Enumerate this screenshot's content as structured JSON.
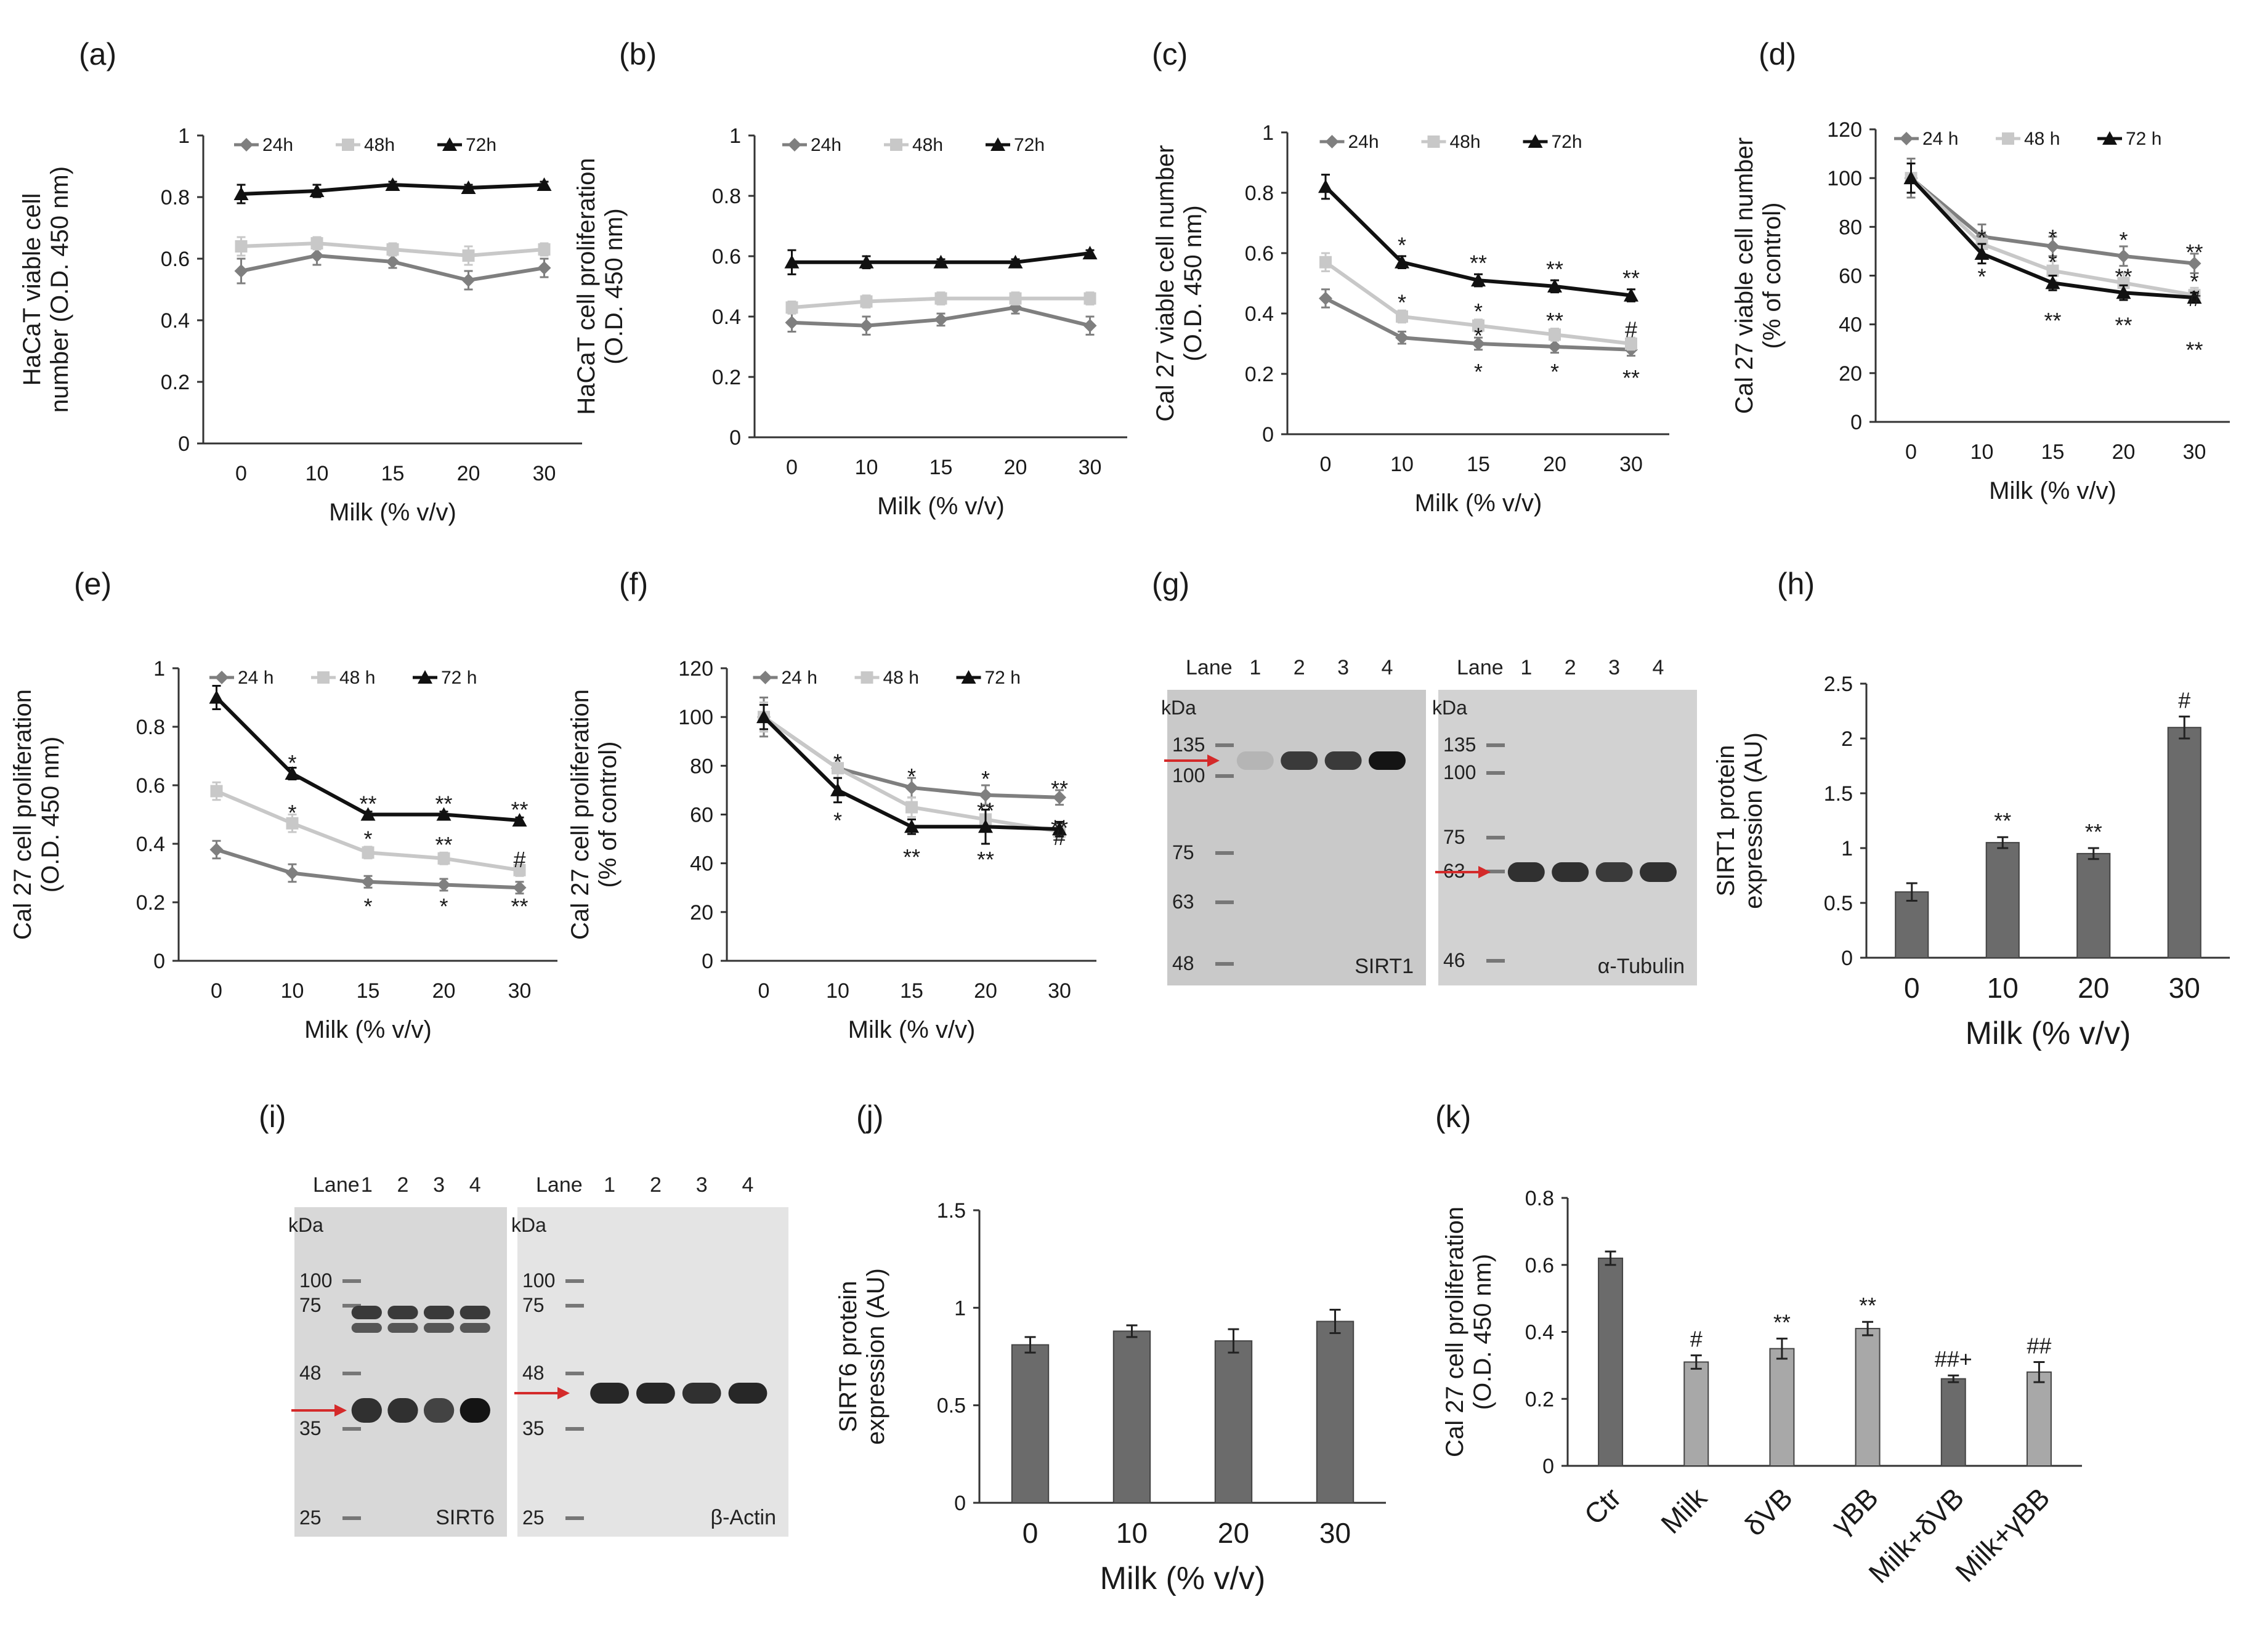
{
  "colors": {
    "s24": "#7f7f7f",
    "s48": "#c8c8c8",
    "s72": "#111111",
    "bar_dark": "#6b6b6b",
    "bar_light": "#a8a8a8",
    "arrow": "#d42a2a"
  },
  "chart_data": [
    {
      "id": "a",
      "panel_label": "(a)",
      "type": "line",
      "x": [
        "0",
        "10",
        "15",
        "20",
        "30"
      ],
      "series": [
        {
          "name": "24h",
          "values": [
            0.56,
            0.61,
            0.59,
            0.53,
            0.57
          ],
          "err": [
            0.04,
            0.03,
            0.02,
            0.03,
            0.03
          ]
        },
        {
          "name": "48h",
          "values": [
            0.64,
            0.65,
            0.63,
            0.61,
            0.63
          ],
          "err": [
            0.03,
            0.02,
            0.02,
            0.03,
            0.02
          ]
        },
        {
          "name": "72h",
          "values": [
            0.81,
            0.82,
            0.84,
            0.83,
            0.84
          ],
          "err": [
            0.03,
            0.02,
            0.01,
            0.01,
            0.01
          ]
        }
      ],
      "xlabel": "Milk (% v/v)",
      "ylabel": [
        "HaCaT viable cell",
        "number (O.D. 450 nm)"
      ],
      "ylim": [
        0,
        1
      ],
      "yticks": [
        "0",
        "0.2",
        "0.4",
        "0.6",
        "0.8",
        "1"
      ],
      "legend": "top-center",
      "annotations": []
    },
    {
      "id": "b",
      "panel_label": "(b)",
      "type": "line",
      "x": [
        "0",
        "10",
        "15",
        "20",
        "30"
      ],
      "series": [
        {
          "name": "24h",
          "values": [
            0.38,
            0.37,
            0.39,
            0.43,
            0.37
          ],
          "err": [
            0.03,
            0.03,
            0.02,
            0.02,
            0.03
          ]
        },
        {
          "name": "48h",
          "values": [
            0.43,
            0.45,
            0.46,
            0.46,
            0.46
          ],
          "err": [
            0.02,
            0.02,
            0.02,
            0.02,
            0.02
          ]
        },
        {
          "name": "72h",
          "values": [
            0.58,
            0.58,
            0.58,
            0.58,
            0.61
          ],
          "err": [
            0.04,
            0.02,
            0.01,
            0.01,
            0.01
          ]
        }
      ],
      "xlabel": "Milk (% v/v)",
      "ylabel": [
        "HaCaT cell proliferation",
        "(O.D. 450 nm)"
      ],
      "ylim": [
        0,
        1
      ],
      "yticks": [
        "0",
        "0.2",
        "0.4",
        "0.6",
        "0.8",
        "1"
      ],
      "legend": "top-center",
      "annotations": []
    },
    {
      "id": "c",
      "panel_label": "(c)",
      "type": "line",
      "x": [
        "0",
        "10",
        "15",
        "20",
        "30"
      ],
      "series": [
        {
          "name": "24h",
          "values": [
            0.45,
            0.32,
            0.3,
            0.29,
            0.28
          ],
          "err": [
            0.03,
            0.02,
            0.02,
            0.02,
            0.02
          ]
        },
        {
          "name": "48h",
          "values": [
            0.57,
            0.39,
            0.36,
            0.33,
            0.3
          ],
          "err": [
            0.03,
            0.02,
            0.02,
            0.02,
            0.02
          ]
        },
        {
          "name": "72h",
          "values": [
            0.82,
            0.57,
            0.51,
            0.49,
            0.46
          ],
          "err": [
            0.04,
            0.02,
            0.02,
            0.02,
            0.02
          ]
        }
      ],
      "xlabel": "Milk (% v/v)",
      "ylabel": [
        "Cal 27 viable cell number",
        "(O.D. 450 nm)"
      ],
      "ylim": [
        0,
        1
      ],
      "yticks": [
        "0",
        "0.2",
        "0.4",
        "0.6",
        "0.8",
        "1"
      ],
      "legend": "top-center",
      "annotations": [
        {
          "x": 1,
          "y": 0.63,
          "text": "*"
        },
        {
          "x": 2,
          "y": 0.57,
          "text": "**"
        },
        {
          "x": 3,
          "y": 0.55,
          "text": "**"
        },
        {
          "x": 4,
          "y": 0.52,
          "text": "**"
        },
        {
          "x": 1,
          "y": 0.44,
          "text": "*"
        },
        {
          "x": 2,
          "y": 0.41,
          "text": "*"
        },
        {
          "x": 3,
          "y": 0.38,
          "text": "**"
        },
        {
          "x": 4,
          "y": 0.35,
          "text": "#"
        },
        {
          "x": 2,
          "y": 0.33,
          "text": "*"
        },
        {
          "x": 2,
          "y": 0.21,
          "text": "*"
        },
        {
          "x": 3,
          "y": 0.21,
          "text": "*"
        },
        {
          "x": 4,
          "y": 0.19,
          "text": "**"
        }
      ]
    },
    {
      "id": "d",
      "panel_label": "(d)",
      "type": "line",
      "x": [
        "0",
        "10",
        "15",
        "20",
        "30"
      ],
      "series": [
        {
          "name": "24 h",
          "values": [
            100,
            76,
            72,
            68,
            65
          ],
          "err": [
            8,
            5,
            4,
            4,
            4
          ]
        },
        {
          "name": "48 h",
          "values": [
            100,
            73,
            62,
            57,
            52
          ],
          "err": [
            6,
            5,
            4,
            4,
            3
          ]
        },
        {
          "name": "72 h",
          "values": [
            100,
            69,
            57,
            53,
            51
          ],
          "err": [
            6,
            4,
            3,
            3,
            2
          ]
        }
      ],
      "xlabel": "Milk (% v/v)",
      "ylabel": [
        "Cal 27 viable cell number",
        "(% of control)"
      ],
      "ylim": [
        0,
        120
      ],
      "yticks": [
        "0",
        "20",
        "40",
        "60",
        "80",
        "100",
        "120"
      ],
      "legend": "top-center",
      "annotations": [
        {
          "x": 1,
          "y": 76,
          "text": "*"
        },
        {
          "x": 2,
          "y": 76,
          "text": "*"
        },
        {
          "x": 3,
          "y": 75,
          "text": "*"
        },
        {
          "x": 4,
          "y": 70,
          "text": "**"
        },
        {
          "x": 2,
          "y": 66,
          "text": "*"
        },
        {
          "x": 3,
          "y": 60,
          "text": "**"
        },
        {
          "x": 4,
          "y": 58,
          "text": "*"
        },
        {
          "x": 1,
          "y": 60,
          "text": "*"
        },
        {
          "x": 4,
          "y": 51,
          "text": "#"
        },
        {
          "x": 2,
          "y": 42,
          "text": "**"
        },
        {
          "x": 3,
          "y": 40,
          "text": "**"
        },
        {
          "x": 4,
          "y": 30,
          "text": "**"
        }
      ]
    },
    {
      "id": "e",
      "panel_label": "(e)",
      "type": "line",
      "x": [
        "0",
        "10",
        "15",
        "20",
        "30"
      ],
      "series": [
        {
          "name": "24 h",
          "values": [
            0.38,
            0.3,
            0.27,
            0.26,
            0.25
          ],
          "err": [
            0.03,
            0.03,
            0.02,
            0.02,
            0.02
          ]
        },
        {
          "name": "48 h",
          "values": [
            0.58,
            0.47,
            0.37,
            0.35,
            0.31
          ],
          "err": [
            0.03,
            0.03,
            0.02,
            0.02,
            0.02
          ]
        },
        {
          "name": "72 h",
          "values": [
            0.9,
            0.64,
            0.5,
            0.5,
            0.48
          ],
          "err": [
            0.04,
            0.02,
            0.01,
            0.01,
            0.01
          ]
        }
      ],
      "xlabel": "Milk (% v/v)",
      "ylabel": [
        "Cal 27  cell proliferation",
        "(O.D. 450 nm)"
      ],
      "ylim": [
        0,
        1
      ],
      "yticks": [
        "0",
        "0.2",
        "0.4",
        "0.6",
        "0.8",
        "1"
      ],
      "legend": "top-center",
      "annotations": [
        {
          "x": 1,
          "y": 0.68,
          "text": "*"
        },
        {
          "x": 2,
          "y": 0.54,
          "text": "**"
        },
        {
          "x": 3,
          "y": 0.54,
          "text": "**"
        },
        {
          "x": 4,
          "y": 0.52,
          "text": "**"
        },
        {
          "x": 1,
          "y": 0.51,
          "text": "*"
        },
        {
          "x": 2,
          "y": 0.42,
          "text": "*"
        },
        {
          "x": 3,
          "y": 0.4,
          "text": "**"
        },
        {
          "x": 4,
          "y": 0.35,
          "text": "#"
        },
        {
          "x": 2,
          "y": 0.19,
          "text": "*"
        },
        {
          "x": 3,
          "y": 0.19,
          "text": "*"
        },
        {
          "x": 4,
          "y": 0.19,
          "text": "**"
        }
      ]
    },
    {
      "id": "f",
      "panel_label": "(f)",
      "type": "line",
      "x": [
        "0",
        "10",
        "15",
        "20",
        "30"
      ],
      "series": [
        {
          "name": "24 h",
          "values": [
            100,
            79,
            71,
            68,
            67
          ],
          "err": [
            8,
            4,
            4,
            4,
            3
          ]
        },
        {
          "name": "48 h",
          "values": [
            100,
            79,
            63,
            58,
            53
          ],
          "err": [
            6,
            4,
            4,
            4,
            3
          ]
        },
        {
          "name": "72 h",
          "values": [
            100,
            70,
            55,
            55,
            54
          ],
          "err": [
            5,
            5,
            3,
            7,
            3
          ]
        }
      ],
      "xlabel": "Milk (% v/v)",
      "ylabel": [
        "Cal 27  cell proliferation",
        "(% of control)"
      ],
      "ylim": [
        0,
        120
      ],
      "yticks": [
        "0",
        "20",
        "40",
        "60",
        "80",
        "100",
        "120"
      ],
      "legend": "top-center",
      "annotations": [
        {
          "x": 1,
          "y": 82,
          "text": "*"
        },
        {
          "x": 2,
          "y": 76,
          "text": "*"
        },
        {
          "x": 3,
          "y": 75,
          "text": "*"
        },
        {
          "x": 4,
          "y": 71,
          "text": "**"
        },
        {
          "x": 3,
          "y": 62,
          "text": "**"
        },
        {
          "x": 4,
          "y": 55,
          "text": "**"
        },
        {
          "x": 1,
          "y": 58,
          "text": "*"
        },
        {
          "x": 2,
          "y": 43,
          "text": "**"
        },
        {
          "x": 3,
          "y": 42,
          "text": "**"
        },
        {
          "x": 4,
          "y": 51,
          "text": "#"
        }
      ]
    },
    {
      "id": "h",
      "panel_label": "(h)",
      "type": "bar",
      "categories": [
        "0",
        "10",
        "20",
        "30"
      ],
      "values": [
        0.6,
        1.05,
        0.95,
        2.1
      ],
      "err": [
        0.08,
        0.05,
        0.05,
        0.1
      ],
      "xlabel": "Milk (% v/v)",
      "ylabel": [
        "SIRT1 protein",
        "expression (AU)"
      ],
      "ylim": [
        0,
        2.5
      ],
      "yticks": [
        "0",
        "0.5",
        "1",
        "1.5",
        "2",
        "2.5"
      ],
      "labels": [
        "",
        "**",
        "**",
        "#"
      ]
    },
    {
      "id": "j",
      "panel_label": "(j)",
      "type": "bar",
      "categories": [
        "0",
        "10",
        "20",
        "30"
      ],
      "values": [
        0.81,
        0.88,
        0.83,
        0.93
      ],
      "err": [
        0.04,
        0.03,
        0.06,
        0.06
      ],
      "xlabel": "Milk (% v/v)",
      "ylabel": [
        "SIRT6 protein",
        "expression (AU)"
      ],
      "ylim": [
        0,
        1.5
      ],
      "yticks": [
        "0",
        "0.5",
        "1",
        "1.5"
      ],
      "labels": [
        "",
        "",
        "",
        ""
      ]
    },
    {
      "id": "k",
      "panel_label": "(k)",
      "type": "bar",
      "categories": [
        "Ctr",
        "Milk",
        "δVB",
        "γBB",
        "Milk+δVB",
        "Milk+γBB"
      ],
      "values": [
        0.62,
        0.31,
        0.35,
        0.41,
        0.26,
        0.28
      ],
      "err": [
        0.02,
        0.02,
        0.03,
        0.02,
        0.01,
        0.03
      ],
      "xlabel": "",
      "ylabel": [
        "Cal 27 cell  proliferation",
        "(O.D. 450 nm)"
      ],
      "ylim": [
        0,
        0.8
      ],
      "yticks": [
        "0",
        "0.2",
        "0.4",
        "0.6",
        "0.8"
      ],
      "labels": [
        "",
        "#",
        "**",
        "**",
        "##+",
        "##"
      ]
    }
  ],
  "blots": {
    "g": {
      "panel_label": "(g)",
      "left": {
        "lane_header": "Lane",
        "lanes": [
          "1",
          "2",
          "3",
          "4"
        ],
        "kda_label": "kDa",
        "markers": [
          "135",
          "100",
          "75",
          "63",
          "48"
        ],
        "protein": "SIRT1",
        "band_intensity": [
          0.1,
          0.75,
          0.75,
          0.95
        ]
      },
      "right": {
        "lane_header": "Lane",
        "lanes": [
          "1",
          "2",
          "3",
          "4"
        ],
        "kda_label": "kDa",
        "markers": [
          "135",
          "100",
          "75",
          "63",
          "46"
        ],
        "protein": "α-Tubulin",
        "band_intensity": [
          0.8,
          0.8,
          0.75,
          0.8
        ]
      }
    },
    "i": {
      "panel_label": "(i)",
      "left": {
        "lane_header": "Lane",
        "lanes": [
          "1",
          "2",
          "3",
          "4"
        ],
        "kda_label": "kDa",
        "markers": [
          "100",
          "75",
          "48",
          "35",
          "25"
        ],
        "protein": "SIRT6",
        "band_intensity": [
          0.8,
          0.8,
          0.7,
          0.95
        ]
      },
      "right": {
        "lane_header": "Lane",
        "lanes": [
          "1",
          "2",
          "3",
          "4"
        ],
        "kda_label": "kDa",
        "markers": [
          "100",
          "75",
          "48",
          "35",
          "25"
        ],
        "protein": "β-Actin",
        "band_intensity": [
          0.85,
          0.85,
          0.8,
          0.85
        ]
      }
    }
  }
}
